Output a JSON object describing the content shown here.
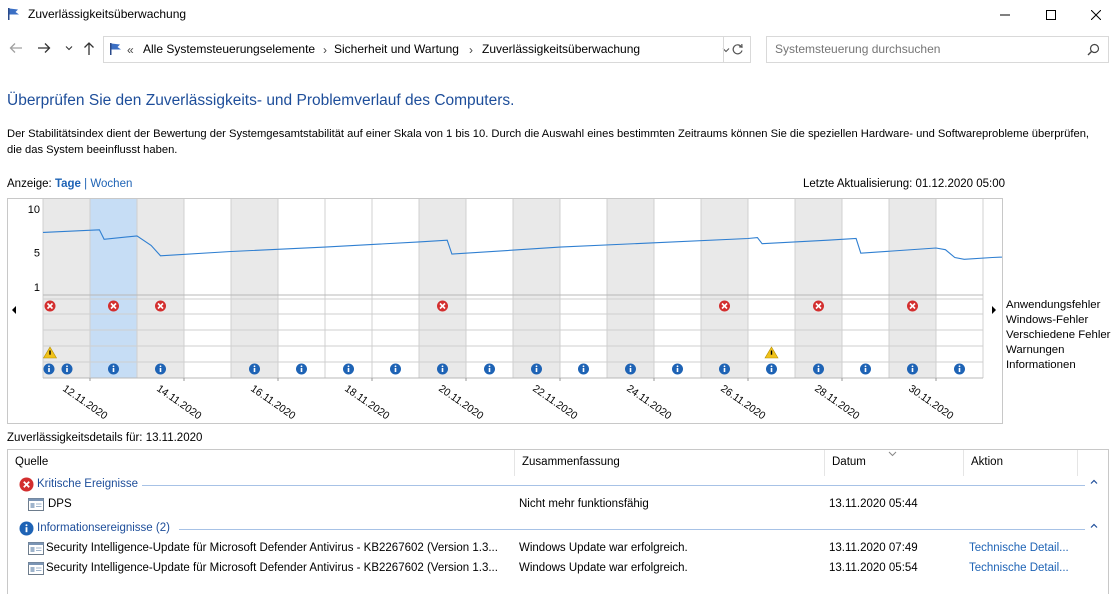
{
  "window": {
    "title": "Zuverlässigkeitsüberwachung"
  },
  "nav": {
    "breadcrumb_overflow": "«",
    "breadcrumbs": [
      "Alle Systemsteuerungselemente",
      "Sicherheit und Wartung",
      "Zuverlässigkeitsüberwachung"
    ],
    "search_placeholder": "Systemsteuerung durchsuchen"
  },
  "content": {
    "title": "Überprüfen Sie den Zuverlässigkeits- und Problemverlauf des Computers.",
    "description": "Der Stabilitätsindex dient der Bewertung der Systemgesamtstabilität auf einer Skala von 1 bis 10. Durch die Auswahl eines bestimmten Zeitraums können Sie die speziellen Hardware- und Softwareprobleme überprüfen, die das System beeinflusst haben.",
    "view_label": "Anzeige:",
    "view_days": "Tage",
    "view_sep": "|",
    "view_weeks": "Wochen",
    "last_update": "Letzte Aktualisierung: 01.12.2020 05:00",
    "details_for": "Zuverlässigkeitsdetails für: 13.11.2020"
  },
  "chart_data": {
    "type": "line",
    "y_ticks": [
      "10",
      "5",
      "1"
    ],
    "ylim": [
      1,
      10
    ],
    "days": 20,
    "selected_day": 1,
    "first_day": "12.11.2020",
    "x_labels": [
      "12.11.2020",
      "14.11.2020",
      "16.11.2020",
      "18.11.2020",
      "20.11.2020",
      "22.11.2020",
      "24.11.2020",
      "26.11.2020",
      "28.11.2020",
      "30.11.2020"
    ],
    "stability": [
      [
        0,
        7.3
      ],
      [
        1.2,
        7.6
      ],
      [
        1.3,
        6.5
      ],
      [
        2.0,
        6.9
      ],
      [
        2.3,
        5.8
      ],
      [
        2.5,
        4.6
      ],
      [
        4,
        5.1
      ],
      [
        6,
        5.6
      ],
      [
        8,
        6.2
      ],
      [
        8.6,
        6.4
      ],
      [
        8.7,
        4.8
      ],
      [
        11,
        5.6
      ],
      [
        13,
        6.1
      ],
      [
        15,
        6.6
      ],
      [
        15.2,
        6.7
      ],
      [
        15.3,
        6.0
      ],
      [
        16.7,
        6.4
      ],
      [
        17.3,
        6.6
      ],
      [
        17.4,
        4.9
      ],
      [
        19,
        5.5
      ],
      [
        19.2,
        5.3
      ],
      [
        19.4,
        4.4
      ],
      [
        19.6,
        4.2
      ],
      [
        20.2,
        4.4
      ],
      [
        21,
        4.6
      ],
      [
        22,
        4.8
      ]
    ],
    "rows": [
      "Anwendungsfehler",
      "Windows-Fehler",
      "Verschiedene Fehler",
      "Warnungen",
      "Informationen"
    ],
    "app_error_days": [
      0,
      1,
      2,
      8,
      14,
      16,
      18
    ],
    "warning_days": [
      0,
      15
    ],
    "info_days": [
      0,
      0.4,
      1,
      2,
      4,
      5,
      6,
      7,
      8,
      9,
      10,
      11,
      12,
      13,
      14,
      15,
      16,
      17,
      18,
      19,
      20
    ]
  },
  "table": {
    "columns": [
      "Quelle",
      "Zusammenfassung",
      "Datum",
      "Aktion"
    ],
    "groups": [
      {
        "label": "Kritische Ereignisse",
        "icon": "error-icon",
        "rows": [
          {
            "source": "DPS",
            "summary": "Nicht mehr funktionsfähig",
            "date": "13.11.2020 05:44",
            "action": ""
          }
        ]
      },
      {
        "label": "Informationsereignisse (2)",
        "icon": "info-icon",
        "rows": [
          {
            "source": "Security Intelligence-Update für Microsoft Defender Antivirus - KB2267602 (Version 1.3...",
            "summary": "Windows Update war erfolgreich.",
            "date": "13.11.2020 07:49",
            "action": "Technische Detail..."
          },
          {
            "source": "Security Intelligence-Update für Microsoft Defender Antivirus - KB2267602 (Version 1.3...",
            "summary": "Windows Update war erfolgreich.",
            "date": "13.11.2020 05:54",
            "action": "Technische Detail..."
          }
        ]
      }
    ]
  }
}
